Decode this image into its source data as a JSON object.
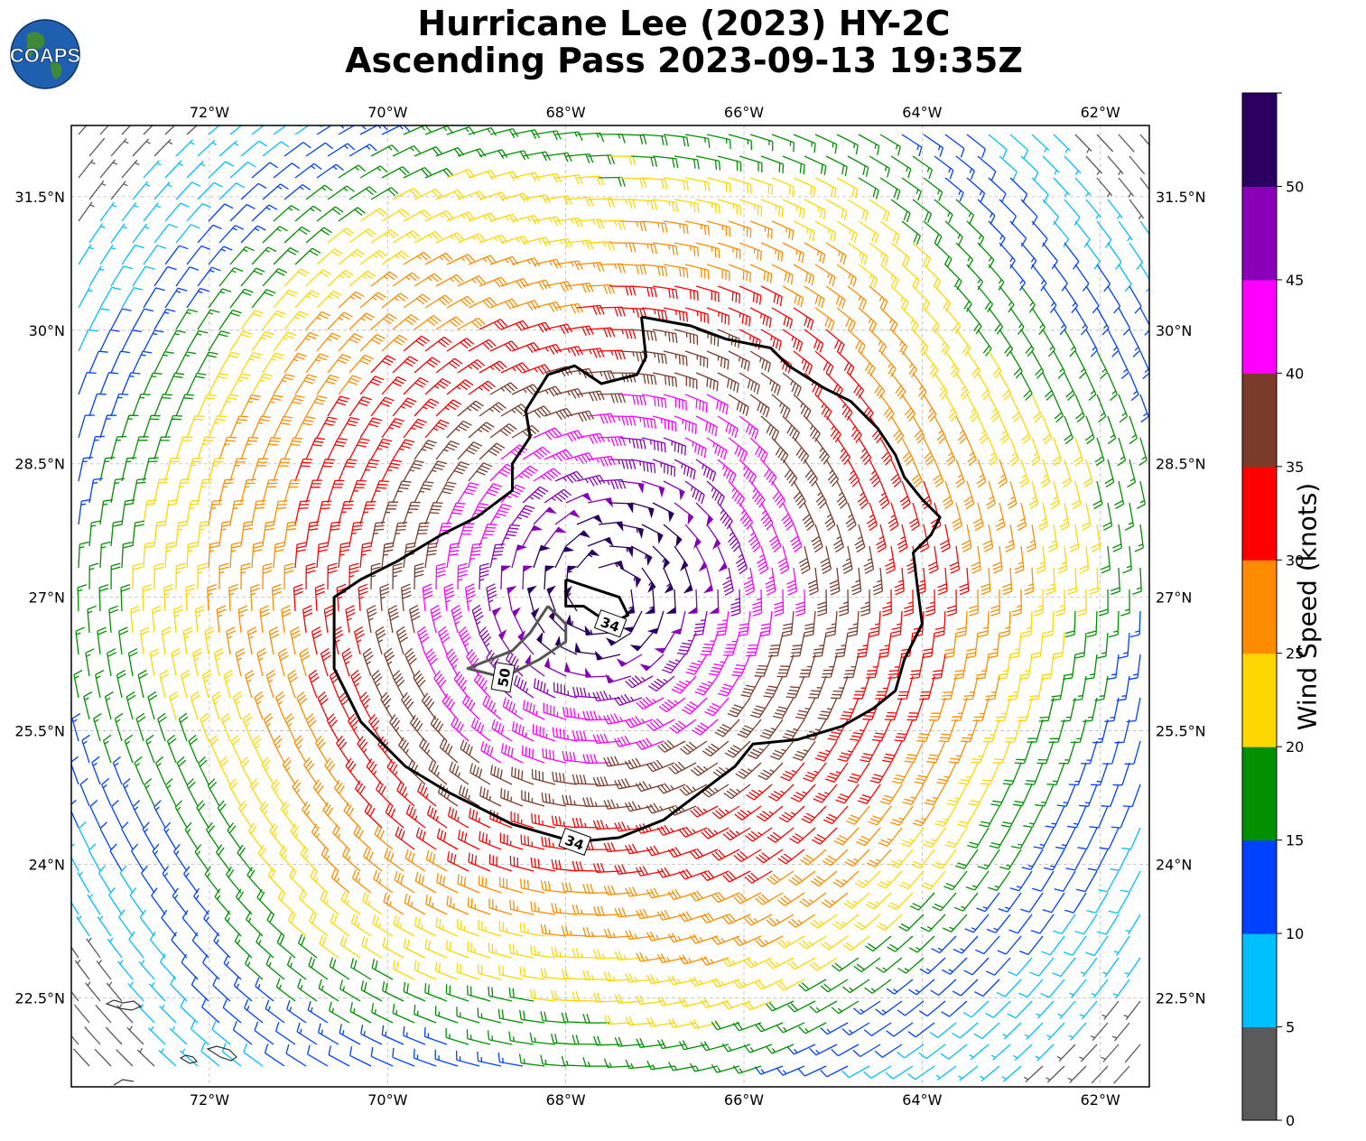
{
  "title": {
    "line1": "Hurricane Lee (2023) HY-2C",
    "line2": "Ascending Pass 2023-09-13 19:35Z"
  },
  "logo": {
    "text": "COAPS",
    "icon": "globe-icon"
  },
  "map": {
    "lon_range": [
      -73.55,
      -61.45
    ],
    "lat_range": [
      21.5,
      32.3
    ],
    "lon_ticks": [
      {
        "v": -72,
        "label": "72°W"
      },
      {
        "v": -70,
        "label": "70°W"
      },
      {
        "v": -68,
        "label": "68°W"
      },
      {
        "v": -66,
        "label": "66°W"
      },
      {
        "v": -64,
        "label": "64°W"
      },
      {
        "v": -62,
        "label": "62°W"
      }
    ],
    "lat_ticks": [
      {
        "v": 31.5,
        "label": "31.5°N"
      },
      {
        "v": 30,
        "label": "30°N"
      },
      {
        "v": 28.5,
        "label": "28.5°N"
      },
      {
        "v": 27,
        "label": "27°N"
      },
      {
        "v": 25.5,
        "label": "25.5°N"
      },
      {
        "v": 24,
        "label": "24°N"
      },
      {
        "v": 22.5,
        "label": "22.5°N"
      }
    ],
    "storm_center": {
      "lon": -67.55,
      "lat": 27.05
    },
    "wind_field": "cyclonic wind barbs, speed decreasing with distance from center",
    "contours": [
      {
        "level": 34,
        "label": "34",
        "color": "#000000",
        "path": [
          [
            -67.15,
            30.15
          ],
          [
            -66.6,
            30.05
          ],
          [
            -66.2,
            29.9
          ],
          [
            -65.7,
            29.8
          ],
          [
            -65.5,
            29.6
          ],
          [
            -65.1,
            29.35
          ],
          [
            -64.8,
            29.2
          ],
          [
            -64.5,
            28.9
          ],
          [
            -64.3,
            28.6
          ],
          [
            -64.2,
            28.35
          ],
          [
            -64.0,
            28.1
          ],
          [
            -63.8,
            27.9
          ],
          [
            -63.9,
            27.7
          ],
          [
            -64.1,
            27.5
          ],
          [
            -64.05,
            27.1
          ],
          [
            -64.0,
            26.7
          ],
          [
            -64.2,
            26.3
          ],
          [
            -64.3,
            25.95
          ],
          [
            -64.55,
            25.75
          ],
          [
            -64.9,
            25.55
          ],
          [
            -65.4,
            25.4
          ],
          [
            -65.9,
            25.35
          ],
          [
            -66.1,
            25.1
          ],
          [
            -66.5,
            24.8
          ],
          [
            -66.9,
            24.5
          ],
          [
            -67.4,
            24.3
          ],
          [
            -67.9,
            24.25
          ],
          [
            -68.6,
            24.45
          ],
          [
            -69.3,
            24.8
          ],
          [
            -69.8,
            25.1
          ],
          [
            -70.3,
            25.6
          ],
          [
            -70.6,
            26.2
          ],
          [
            -70.6,
            26.7
          ],
          [
            -70.6,
            27.0
          ],
          [
            -70.3,
            27.2
          ],
          [
            -69.9,
            27.4
          ],
          [
            -69.4,
            27.7
          ],
          [
            -69.0,
            27.9
          ],
          [
            -68.6,
            28.2
          ],
          [
            -68.6,
            28.5
          ],
          [
            -68.4,
            28.8
          ],
          [
            -68.45,
            29.1
          ],
          [
            -68.2,
            29.5
          ],
          [
            -67.9,
            29.6
          ],
          [
            -67.6,
            29.4
          ],
          [
            -67.2,
            29.5
          ],
          [
            -67.1,
            29.7
          ],
          [
            -67.15,
            30.15
          ]
        ]
      },
      {
        "level": 34,
        "label": "34",
        "color": "#000000",
        "path": [
          [
            -68.0,
            27.2
          ],
          [
            -67.7,
            27.1
          ],
          [
            -67.4,
            27.0
          ],
          [
            -67.3,
            26.8
          ],
          [
            -67.5,
            26.7
          ],
          [
            -67.8,
            26.9
          ],
          [
            -68.0,
            26.9
          ],
          [
            -68.0,
            27.2
          ]
        ]
      },
      {
        "level": 50,
        "label": "50",
        "color": "#555555",
        "path": [
          [
            -68.2,
            26.9
          ],
          [
            -68.0,
            26.7
          ],
          [
            -68.0,
            26.5
          ],
          [
            -68.3,
            26.3
          ],
          [
            -68.7,
            26.1
          ],
          [
            -69.1,
            26.2
          ],
          [
            -68.6,
            26.4
          ],
          [
            -68.4,
            26.6
          ],
          [
            -68.2,
            26.9
          ]
        ]
      }
    ]
  },
  "colorbar": {
    "title": "Wind Speed (knots)",
    "bins": [
      {
        "min": 0,
        "max": 5,
        "color": "#5a5a5a"
      },
      {
        "min": 5,
        "max": 10,
        "color": "#00bfff"
      },
      {
        "min": 10,
        "max": 15,
        "color": "#0040ff"
      },
      {
        "min": 15,
        "max": 20,
        "color": "#009000"
      },
      {
        "min": 20,
        "max": 25,
        "color": "#ffd700"
      },
      {
        "min": 25,
        "max": 30,
        "color": "#ff8c00"
      },
      {
        "min": 30,
        "max": 35,
        "color": "#ff0000"
      },
      {
        "min": 35,
        "max": 40,
        "color": "#7b3b2a"
      },
      {
        "min": 40,
        "max": 45,
        "color": "#ff00ff"
      },
      {
        "min": 45,
        "max": 50,
        "color": "#8a00b8"
      },
      {
        "min": 50,
        "max": 55,
        "color": "#2a0060"
      }
    ],
    "tick_labels": [
      "0",
      "5",
      "10",
      "15",
      "20",
      "25",
      "30",
      "35",
      "40",
      "45",
      "50"
    ]
  }
}
